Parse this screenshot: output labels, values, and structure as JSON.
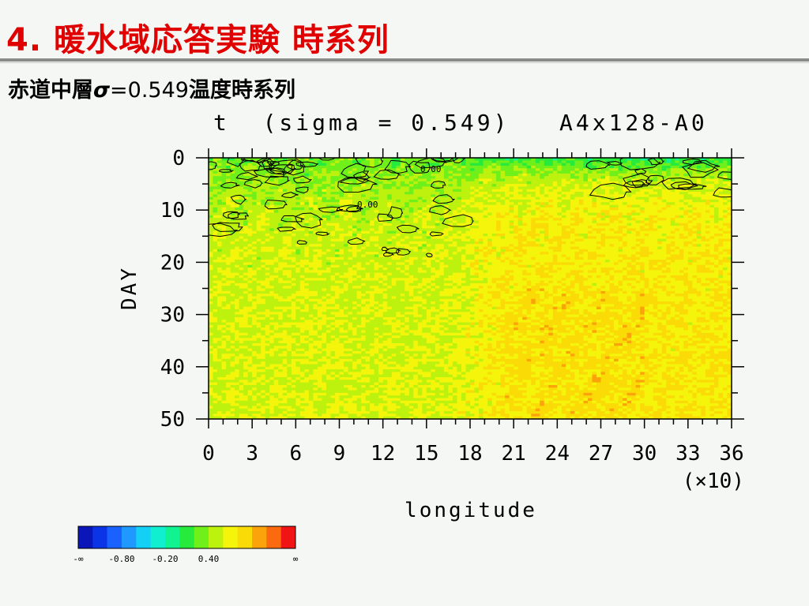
{
  "slide": {
    "title": "4. 暖水域応答実験 時系列",
    "subtitle_prefix": "赤道中層",
    "subtitle_sigma": "σ",
    "subtitle_eq": "=",
    "subtitle_value": "0.549",
    "subtitle_suffix": "温度時系列"
  },
  "chart_data": {
    "type": "heatmap",
    "title": "t  (sigma = 0.549)   A4x128-A0",
    "xlabel": "longitude",
    "xlabel_unit": "(×10)",
    "ylabel": "DAY",
    "x_ticks": [
      "0",
      "3",
      "6",
      "9",
      "12",
      "15",
      "18",
      "21",
      "24",
      "27",
      "30",
      "33",
      "36"
    ],
    "y_ticks": [
      "0",
      "10",
      "20",
      "30",
      "40",
      "50"
    ],
    "xlim": [
      0,
      36
    ],
    "ylim": [
      0,
      50
    ],
    "y_inverted": true,
    "contour_labels": [
      "0.00",
      "0.00"
    ],
    "colorbar": {
      "colors": [
        "#0b16b8",
        "#0b34e6",
        "#1a62ff",
        "#1f98ff",
        "#14cff6",
        "#10f0d0",
        "#11f291",
        "#26ea3c",
        "#6ff01a",
        "#bdf10e",
        "#f4f50a",
        "#fbdb07",
        "#fba30b",
        "#fb6a0f",
        "#f01414"
      ],
      "labels": [
        "-∞",
        "-0.80",
        "-0.20",
        "0.40",
        "∞"
      ]
    },
    "regions": [
      {
        "lon": [
          0,
          18
        ],
        "day": [
          0,
          10
        ],
        "level": "green, ~-0.1 to 0.1, contour 0.00"
      },
      {
        "lon": [
          0,
          18
        ],
        "day": [
          10,
          50
        ],
        "level": "yellow-green, ~0.2 to 0.4"
      },
      {
        "lon": [
          18,
          36
        ],
        "day": [
          0,
          5
        ],
        "level": "green, ~0.0"
      },
      {
        "lon": [
          18,
          36
        ],
        "day": [
          5,
          50
        ],
        "level": "yellow-orange, ~0.5 to 0.7"
      }
    ]
  }
}
